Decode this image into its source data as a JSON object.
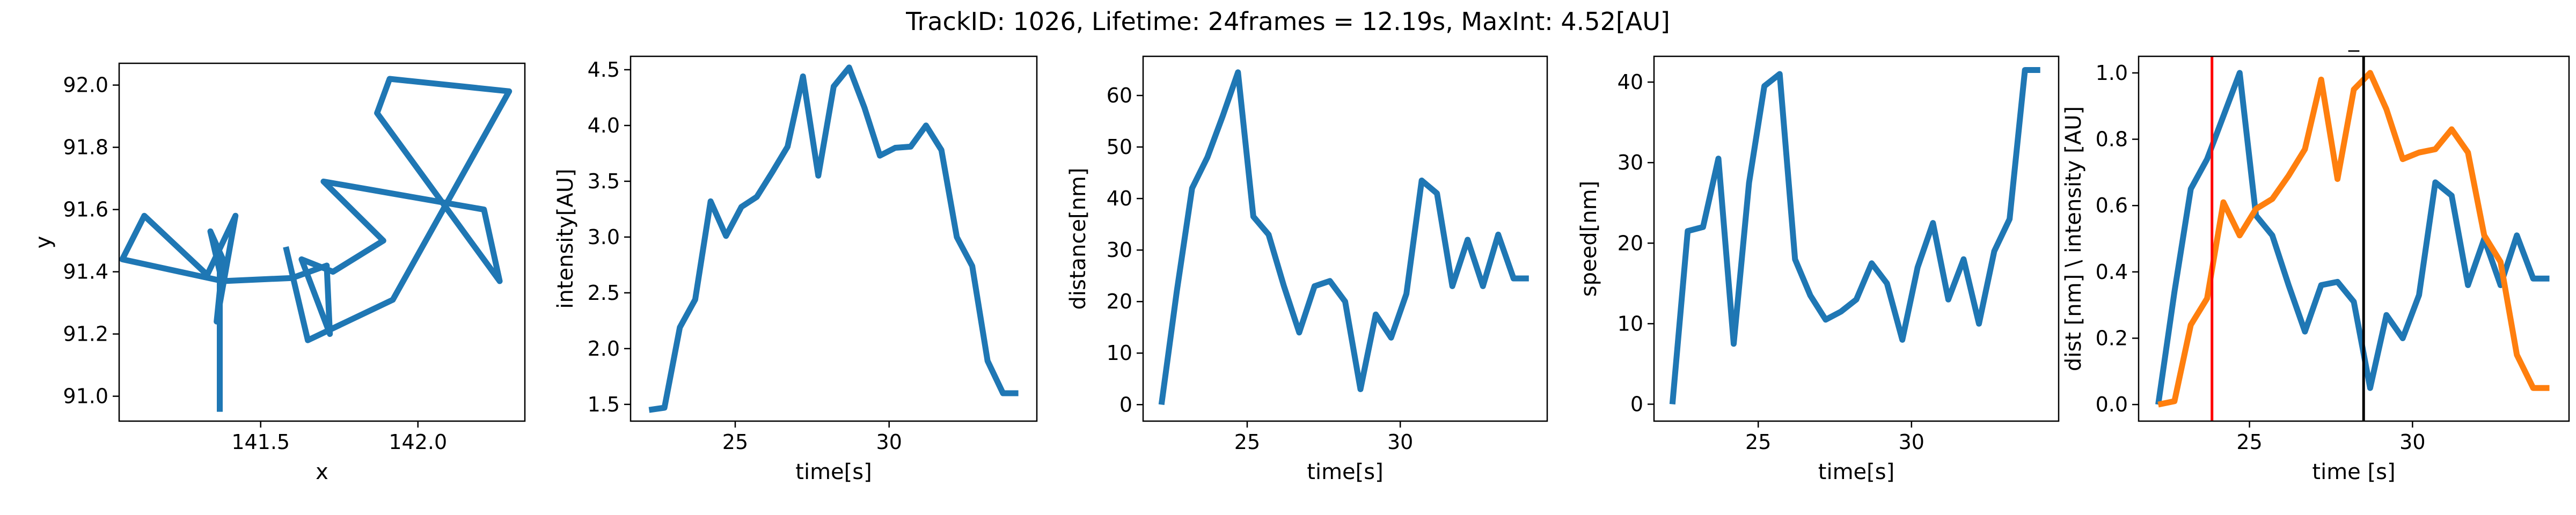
{
  "figure": {
    "title": "TrackID: 1026, Lifetime: 24frames = 12.19s, MaxInt: 4.52[AU]"
  },
  "colors": {
    "blue": "#1f77b4",
    "orange": "#ff7f0e",
    "red": "#ff0000",
    "black": "#000000"
  },
  "chart_data": [
    {
      "type": "line",
      "title": "",
      "xlabel": "x",
      "ylabel": "y",
      "xlim": [
        141.05,
        142.34
      ],
      "ylim": [
        90.92,
        92.07
      ],
      "xticks": [
        141.5,
        142.0
      ],
      "xtick_labels": [
        "141.5",
        "142.0"
      ],
      "yticks": [
        91.0,
        91.2,
        91.4,
        91.6,
        91.8,
        92.0
      ],
      "ytick_labels": [
        "91.0",
        "91.2",
        "91.4",
        "91.6",
        "91.8",
        "92.0"
      ],
      "series": [
        {
          "color_key": "blue",
          "x": [
            141.37,
            141.37,
            141.34,
            141.38,
            141.36,
            141.42,
            141.33,
            141.13,
            141.06,
            141.38,
            141.6,
            141.71,
            141.72,
            141.63,
            141.73,
            141.89,
            141.7,
            142.21,
            142.26,
            141.87,
            141.91,
            142.29,
            141.92,
            141.65,
            141.58
          ],
          "y": [
            90.95,
            91.4,
            91.53,
            91.44,
            91.24,
            91.58,
            91.39,
            91.58,
            91.44,
            91.37,
            91.38,
            91.42,
            91.2,
            91.44,
            91.4,
            91.5,
            91.69,
            91.6,
            91.37,
            91.91,
            92.02,
            91.98,
            91.31,
            91.18,
            91.48
          ]
        }
      ]
    },
    {
      "type": "line",
      "title": "",
      "xlabel": "time[s]",
      "ylabel": "intensity[AU]",
      "xlim": [
        21.6,
        34.8
      ],
      "ylim": [
        1.35,
        4.62
      ],
      "xticks": [
        25,
        30
      ],
      "xtick_labels": [
        "25",
        "30"
      ],
      "yticks": [
        1.5,
        2.0,
        2.5,
        3.0,
        3.5,
        4.0,
        4.5
      ],
      "ytick_labels": [
        "1.5",
        "2.0",
        "2.5",
        "3.0",
        "3.5",
        "4.0",
        "4.5"
      ],
      "series": [
        {
          "color_key": "blue",
          "x": [
            22.2,
            22.7,
            23.2,
            23.7,
            24.2,
            24.7,
            25.2,
            25.7,
            26.2,
            26.7,
            27.2,
            27.7,
            28.2,
            28.7,
            29.2,
            29.7,
            30.2,
            30.7,
            31.2,
            31.7,
            32.2,
            32.7,
            33.2,
            33.7,
            34.2
          ],
          "y": [
            1.45,
            1.47,
            2.19,
            2.44,
            3.32,
            3.01,
            3.27,
            3.36,
            3.58,
            3.81,
            4.44,
            3.55,
            4.35,
            4.52,
            4.16,
            3.73,
            3.8,
            3.81,
            4.0,
            3.78,
            3.0,
            2.74,
            1.89,
            1.6,
            1.6
          ]
        }
      ]
    },
    {
      "type": "line",
      "title": "",
      "xlabel": "time[s]",
      "ylabel": "distance[nm]",
      "xlim": [
        21.6,
        34.8
      ],
      "ylim": [
        -3.2,
        67.6
      ],
      "xticks": [
        25,
        30
      ],
      "xtick_labels": [
        "25",
        "30"
      ],
      "yticks": [
        0,
        10,
        20,
        30,
        40,
        50,
        60
      ],
      "ytick_labels": [
        "0",
        "10",
        "20",
        "30",
        "40",
        "50",
        "60"
      ],
      "series": [
        {
          "color_key": "blue",
          "x": [
            22.2,
            22.7,
            23.2,
            23.7,
            24.2,
            24.7,
            25.2,
            25.7,
            26.2,
            26.7,
            27.2,
            27.7,
            28.2,
            28.7,
            29.2,
            29.7,
            30.2,
            30.7,
            31.2,
            31.7,
            32.2,
            32.7,
            33.2,
            33.7,
            34.2
          ],
          "y": [
            0,
            22,
            42,
            48,
            56,
            64.5,
            36.5,
            33,
            23,
            14,
            23,
            24,
            20,
            3,
            17.5,
            13,
            21.5,
            43.5,
            41,
            23,
            32,
            23,
            33,
            24.5,
            24.5
          ]
        }
      ]
    },
    {
      "type": "line",
      "title": "",
      "xlabel": "time[s]",
      "ylabel": "speed[nm]",
      "xlim": [
        21.6,
        34.8
      ],
      "ylim": [
        -2.1,
        43.2
      ],
      "xticks": [
        25,
        30
      ],
      "xtick_labels": [
        "25",
        "30"
      ],
      "yticks": [
        0,
        10,
        20,
        30,
        40
      ],
      "ytick_labels": [
        "0",
        "10",
        "20",
        "30",
        "40"
      ],
      "series": [
        {
          "color_key": "blue",
          "x": [
            22.2,
            22.7,
            23.2,
            23.7,
            24.2,
            24.7,
            25.2,
            25.7,
            26.2,
            26.7,
            27.2,
            27.7,
            28.2,
            28.7,
            29.2,
            29.7,
            30.2,
            30.7,
            31.2,
            31.7,
            32.2,
            32.7,
            33.2,
            33.7,
            34.2
          ],
          "y": [
            0,
            21.5,
            22,
            30.5,
            7.5,
            27.5,
            39.5,
            41,
            18,
            13.5,
            10.5,
            11.5,
            13,
            17.5,
            15,
            8,
            17,
            22.5,
            13,
            18,
            10,
            19,
            23,
            41.5,
            41.5
          ]
        }
      ]
    },
    {
      "type": "line",
      "title": "_",
      "xlabel": "time [s]",
      "ylabel": "dist [nm] \\ intensity [AU]",
      "xlim": [
        21.6,
        34.8
      ],
      "ylim": [
        -0.05,
        1.05
      ],
      "xticks": [
        25,
        30
      ],
      "xtick_labels": [
        "25",
        "30"
      ],
      "yticks": [
        0.0,
        0.2,
        0.4,
        0.6,
        0.8,
        1.0
      ],
      "ytick_labels": [
        "0.0",
        "0.2",
        "0.4",
        "0.6",
        "0.8",
        "1.0"
      ],
      "series": [
        {
          "color_key": "blue",
          "x": [
            22.2,
            22.7,
            23.2,
            23.7,
            24.2,
            24.7,
            25.2,
            25.7,
            26.2,
            26.7,
            27.2,
            27.7,
            28.2,
            28.7,
            29.2,
            29.7,
            30.2,
            30.7,
            31.2,
            31.7,
            32.2,
            32.7,
            33.2,
            33.7,
            34.2
          ],
          "y": [
            0.0,
            0.34,
            0.65,
            0.74,
            0.87,
            1.0,
            0.57,
            0.51,
            0.36,
            0.22,
            0.36,
            0.37,
            0.31,
            0.05,
            0.27,
            0.2,
            0.33,
            0.67,
            0.63,
            0.36,
            0.5,
            0.36,
            0.51,
            0.38,
            0.38
          ]
        },
        {
          "color_key": "orange",
          "x": [
            22.2,
            22.7,
            23.2,
            23.7,
            24.2,
            24.7,
            25.2,
            25.7,
            26.2,
            26.7,
            27.2,
            27.7,
            28.2,
            28.7,
            29.2,
            29.7,
            30.2,
            30.7,
            31.2,
            31.7,
            32.2,
            32.7,
            33.2,
            33.7,
            34.2
          ],
          "y": [
            0.0,
            0.01,
            0.24,
            0.32,
            0.61,
            0.51,
            0.59,
            0.62,
            0.69,
            0.77,
            0.98,
            0.68,
            0.95,
            1.0,
            0.89,
            0.74,
            0.76,
            0.77,
            0.83,
            0.76,
            0.51,
            0.43,
            0.15,
            0.05,
            0.05
          ]
        }
      ],
      "vlines": [
        {
          "x": 23.85,
          "color_key": "red"
        },
        {
          "x": 28.5,
          "color_key": "black"
        }
      ]
    }
  ]
}
